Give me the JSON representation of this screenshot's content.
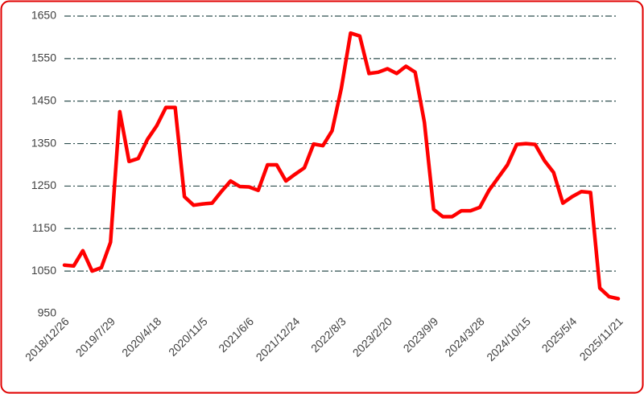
{
  "chart_data": {
    "type": "line",
    "categories": [
      "2018/12/26",
      null,
      null,
      null,
      null,
      "2019/7/29",
      null,
      null,
      null,
      null,
      "2020/4/18",
      null,
      null,
      null,
      null,
      "2020/11/5",
      null,
      null,
      null,
      null,
      "2021/6/6",
      null,
      null,
      null,
      null,
      "2021/12/24",
      null,
      null,
      null,
      null,
      "2022/8/3",
      null,
      null,
      null,
      null,
      "2023/2/20",
      null,
      null,
      null,
      null,
      "2023/9/9",
      null,
      null,
      null,
      null,
      "2024/3/28",
      null,
      null,
      null,
      null,
      "2024/10/15",
      null,
      null,
      null,
      null,
      "2025/5/4",
      null,
      null,
      null,
      null,
      "2025/11/21"
    ],
    "series": [
      {
        "color": "#ff0000",
        "values": [
          1064,
          1062,
          1098,
          1050,
          1058,
          1118,
          1425,
          1308,
          1315,
          1360,
          1392,
          1435,
          1435,
          1225,
          1205,
          1208,
          1210,
          1237,
          1262,
          1249,
          1248,
          1240,
          1300,
          1300,
          1262,
          1278,
          1293,
          1349,
          1345,
          1380,
          1480,
          1610,
          1603,
          1515,
          1518,
          1526,
          1515,
          1532,
          1518,
          1400,
          1195,
          1178,
          1178,
          1192,
          1192,
          1200,
          1240,
          1270,
          1300,
          1348,
          1350,
          1348,
          1310,
          1282,
          1210,
          1225,
          1237,
          1235,
          1010,
          990,
          985
        ]
      }
    ],
    "ylim": [
      950,
      1650
    ],
    "yticks": [
      950,
      1050,
      1150,
      1250,
      1350,
      1450,
      1550,
      1650
    ],
    "grid": true
  }
}
